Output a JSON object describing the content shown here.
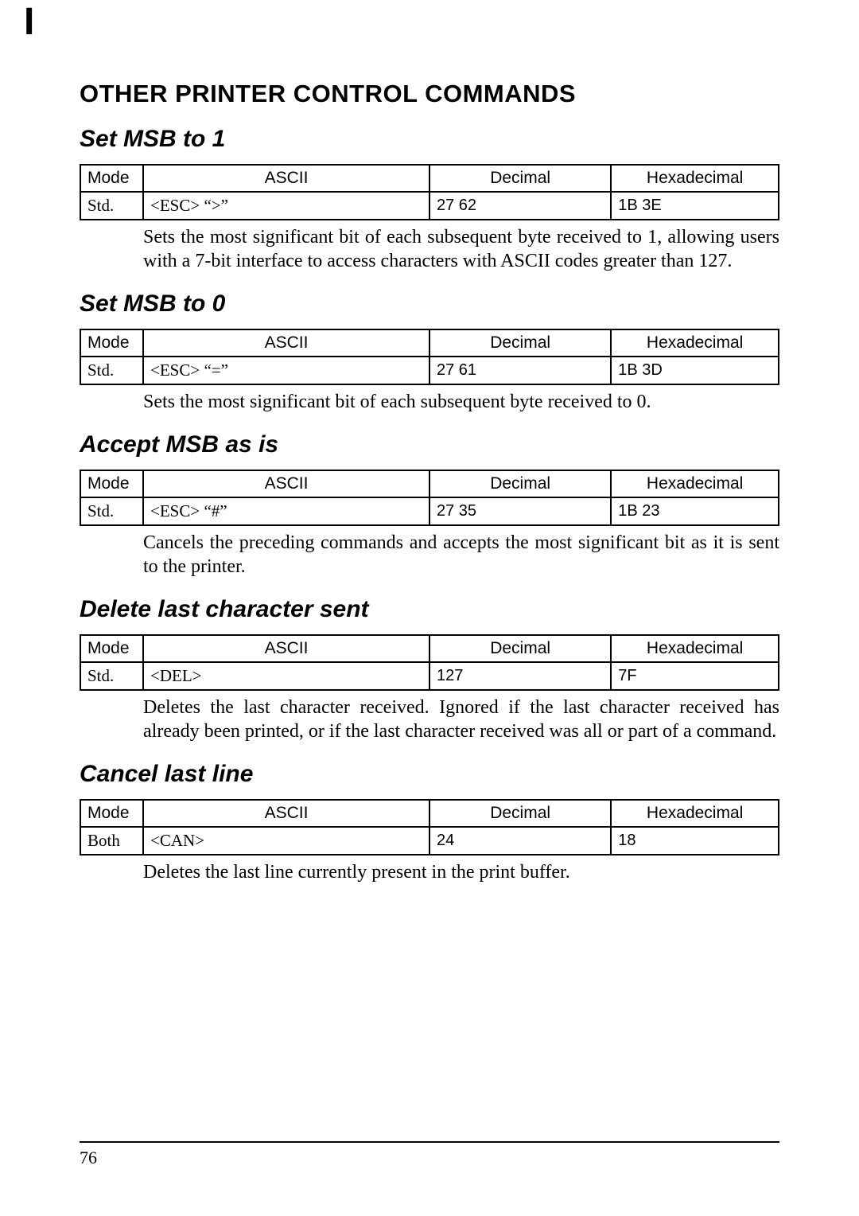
{
  "page": {
    "top_mark": "I",
    "main_heading": "OTHER PRINTER CONTROL COMMANDS",
    "page_number": "76"
  },
  "column_headers": {
    "mode": "Mode",
    "ascii": "ASCII",
    "decimal": "Decimal",
    "hex": "Hexadecimal"
  },
  "sections": {
    "set_msb_1": {
      "title": "Set MSB to 1",
      "row": {
        "mode": "Std.",
        "ascii": "<ESC>   “>”",
        "decimal": "27   62",
        "hex": "1B   3E"
      },
      "desc": "Sets the most significant bit of each subsequent byte received to 1, allowing users with a 7-bit interface to access characters with ASCII codes greater than 127."
    },
    "set_msb_0": {
      "title": "Set MSB to 0",
      "row": {
        "mode": "Std.",
        "ascii": "<ESC>   “=”",
        "decimal": "27   61",
        "hex": "1B   3D"
      },
      "desc": "Sets the most significant bit of each subsequent byte received to 0."
    },
    "accept_msb": {
      "title": "Accept MSB as is",
      "row": {
        "mode": "Std.",
        "ascii": "<ESC>   “#”",
        "decimal": "27   35",
        "hex": "1B   23"
      },
      "desc": "Cancels the preceding commands and accepts the most significant bit as it is sent to the printer."
    },
    "delete_last_char": {
      "title": "Delete last character sent",
      "row": {
        "mode": "Std.",
        "ascii": "<DEL>",
        "decimal": "127",
        "hex": "7F"
      },
      "desc": "Deletes the last character received. Ignored if the last character received has already been printed, or if the last character received was all or part of a command."
    },
    "cancel_last_line": {
      "title": "Cancel last line",
      "row": {
        "mode": "Both",
        "ascii": "<CAN>",
        "decimal": "24",
        "hex": "18"
      },
      "desc": "Deletes the last line currently present in the print buffer."
    }
  }
}
